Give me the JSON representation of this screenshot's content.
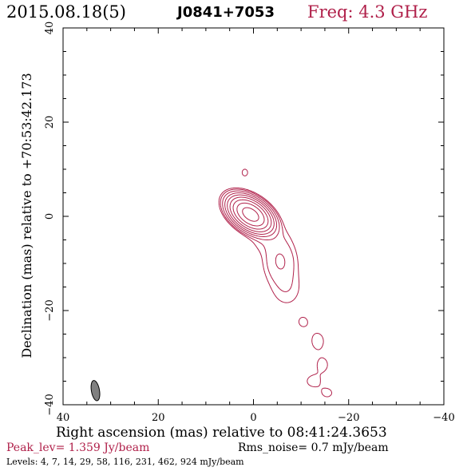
{
  "header": {
    "date": "2015.08.18(5)",
    "source": "J0841+7053",
    "freq": "Freq: 4.3 GHz"
  },
  "footer": {
    "peak": "Peak_lev=  1.359 Jy/beam",
    "rms": "Rms_noise=  0.7 mJy/beam",
    "levels": "Levels:  4,  7,  14,  29,  58,  116,  231,  462,  924 mJy/beam"
  },
  "colors": {
    "contour": "#b0204a",
    "beam": "#808080",
    "freq_text": "#b0204a",
    "peak_text": "#b0204a"
  },
  "chart_data": {
    "type": "contour",
    "xlabel": "Right ascension (mas) relative to 08:41:24.3653",
    "ylabel": "Declination (mas) relative to +70:53:42.173",
    "xlim": [
      40,
      -40
    ],
    "ylim": [
      -40,
      40
    ],
    "x_ticks": [
      40,
      20,
      0,
      -20,
      -40
    ],
    "y_ticks": [
      -40,
      -20,
      0,
      20,
      40
    ],
    "x_tick_labels": [
      "40",
      "20",
      "0",
      "−20",
      "−40"
    ],
    "y_tick_labels": [
      "−40",
      "−20",
      "0",
      "20",
      "40"
    ],
    "contour_levels_mJy": [
      4,
      7,
      14,
      29,
      58,
      116,
      231,
      462,
      924
    ],
    "components": [
      {
        "x": 0.6,
        "y": 0.4,
        "sx": 2.2,
        "sy": 1.3,
        "angle_deg": 35,
        "peak_mJy": 1359
      },
      {
        "x": -5.6,
        "y": -9.4,
        "sx": 2.2,
        "sy": 3.0,
        "angle_deg": 0,
        "peak_mJy": 14.5
      },
      {
        "x": -3.0,
        "y": -4.8,
        "sx": 3.0,
        "sy": 2.0,
        "angle_deg": -15,
        "peak_mJy": 5.5
      },
      {
        "x": -7.0,
        "y": -15.5,
        "sx": 2.5,
        "sy": 3.0,
        "angle_deg": 0,
        "peak_mJy": 6
      },
      {
        "x": -10.5,
        "y": -22.5,
        "sx": 1.5,
        "sy": 1.6,
        "angle_deg": 0,
        "peak_mJy": 4.6
      },
      {
        "x": -13.5,
        "y": -26.5,
        "sx": 1.2,
        "sy": 1.6,
        "angle_deg": 0,
        "peak_mJy": 6.5
      },
      {
        "x": -14.5,
        "y": -31.5,
        "sx": 1.3,
        "sy": 1.6,
        "angle_deg": 0,
        "peak_mJy": 5.5
      },
      {
        "x": -12.5,
        "y": -35.0,
        "sx": 1.5,
        "sy": 1.3,
        "angle_deg": 0,
        "peak_mJy": 5.5
      },
      {
        "x": -15.5,
        "y": -37.5,
        "sx": 1.4,
        "sy": 1.2,
        "angle_deg": 0,
        "peak_mJy": 5
      },
      {
        "x": 1.8,
        "y": 9.3,
        "sx": 0.8,
        "sy": 1.0,
        "angle_deg": 0,
        "peak_mJy": 5.2
      }
    ],
    "beam": {
      "x": 33.2,
      "y": -37.0,
      "major_mas": 4.3,
      "minor_mas": 1.7,
      "pa_deg": 40
    },
    "grid": false
  }
}
